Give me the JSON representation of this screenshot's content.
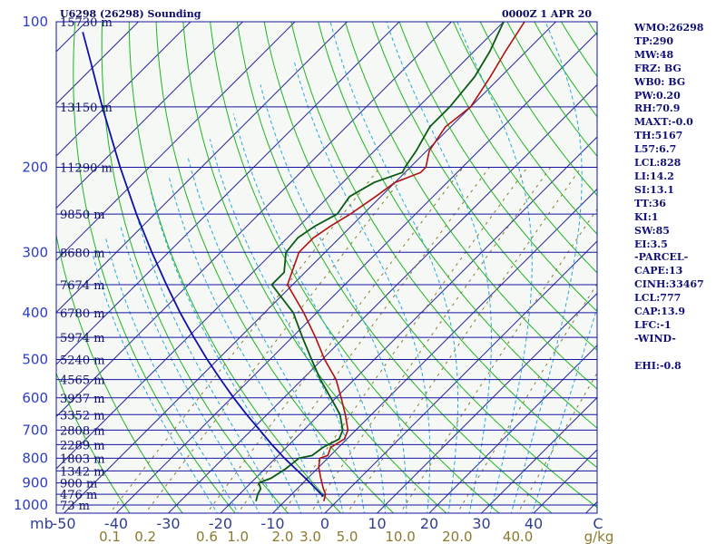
{
  "header": {
    "station": "U6298 (26298) Sounding",
    "valid_time": "0000Z  1 APR 20"
  },
  "side_panel": [
    "WMO:26298",
    "TP:290",
    "MW:48",
    "FRZ: BG",
    "WB0: BG",
    "PW:0.20",
    "RH:70.9",
    "MAXT:-0.0",
    "TH:5167",
    "L57:6.7",
    "LCL:828",
    "LI:14.2",
    "SI:13.1",
    "TT:36",
    "KI:1",
    "SW:85",
    "EI:3.5",
    "-PARCEL-",
    "CAPE:13",
    "CINH:33467",
    "LCL:777",
    "CAP:13.9",
    "LFC:-1",
    "-WIND-",
    "",
    "EHI:-0.8"
  ],
  "colors": {
    "background": "#f6f8f6",
    "isobar": "#1414a0",
    "isotherm": "#2a2aa0",
    "dry_adiabat": "#1fb41f",
    "moist_adiabat": "#28a8d8",
    "mixing_ratio": "#8a7a2e",
    "temperature": "#b01010",
    "dewpoint": "#0a5a14",
    "parcel": "#1010a8"
  },
  "chart_data": {
    "type": "skew-t",
    "title": "U6298 (26298) Sounding  0000Z  1 APR 20",
    "xlabel": "C",
    "x_units_label": "g/kg",
    "pressure_axis_label": "mb",
    "pressure_ticks": [
      "100",
      "200",
      "300",
      "400",
      "500",
      "600",
      "700",
      "800",
      "900",
      "1000"
    ],
    "temperature_ticks": [
      "-50",
      "-40",
      "-30",
      "-20",
      "-10",
      "0",
      "10",
      "20",
      "30",
      "40"
    ],
    "mixing_ratio_ticks": [
      "0.1",
      "0.2",
      "0.6",
      "1.0",
      "2.0",
      "3.0",
      "5.0",
      "10.0",
      "20.0",
      "40.0"
    ],
    "height_labels": [
      {
        "p": 100,
        "label": "15730 m"
      },
      {
        "p": 150,
        "label": "13150 m"
      },
      {
        "p": 200,
        "label": "11290 m"
      },
      {
        "p": 250,
        "label": "9850 m"
      },
      {
        "p": 300,
        "label": "8680 m"
      },
      {
        "p": 350,
        "label": "7674 m"
      },
      {
        "p": 400,
        "label": "6780 m"
      },
      {
        "p": 450,
        "label": "5974 m"
      },
      {
        "p": 500,
        "label": "5240 m"
      },
      {
        "p": 550,
        "label": "4565 m"
      },
      {
        "p": 600,
        "label": "3937 m"
      },
      {
        "p": 650,
        "label": "3352 m"
      },
      {
        "p": 700,
        "label": "2808 m"
      },
      {
        "p": 750,
        "label": "2289 m"
      },
      {
        "p": 800,
        "label": "1803 m"
      },
      {
        "p": 850,
        "label": "1342 m"
      },
      {
        "p": 900,
        "label": "900 m"
      },
      {
        "p": 950,
        "label": "476 m"
      },
      {
        "p": 1000,
        "label": "73 m"
      }
    ],
    "series": [
      {
        "points": [
          [
            982,
            -2.5
          ],
          [
            950,
            -3.5
          ],
          [
            925,
            -5.0
          ],
          [
            880,
            -7.5
          ],
          [
            835,
            -10.0
          ],
          [
            800,
            -11.5
          ],
          [
            790,
            -10.5
          ],
          [
            760,
            -11.5
          ],
          [
            730,
            -10.5
          ],
          [
            700,
            -11.5
          ],
          [
            650,
            -15.0
          ],
          [
            600,
            -19.0
          ],
          [
            550,
            -23.5
          ],
          [
            500,
            -29.5
          ],
          [
            450,
            -35.5
          ],
          [
            400,
            -42.5
          ],
          [
            350,
            -51.0
          ],
          [
            300,
            -55.0
          ],
          [
            280,
            -55.0
          ],
          [
            265,
            -54.0
          ],
          [
            250,
            -52.5
          ],
          [
            230,
            -51.0
          ],
          [
            215,
            -50.0
          ],
          [
            205,
            -47.0
          ],
          [
            200,
            -47.0
          ],
          [
            185,
            -49.5
          ],
          [
            165,
            -51.0
          ],
          [
            150,
            -50.0
          ],
          [
            130,
            -52.0
          ],
          [
            115,
            -54.0
          ],
          [
            100,
            -56.0
          ]
        ]
      },
      {
        "points": [
          [
            982,
            -15.5
          ],
          [
            950,
            -16.5
          ],
          [
            925,
            -17.0
          ],
          [
            900,
            -18.5
          ],
          [
            880,
            -17.0
          ],
          [
            840,
            -16.0
          ],
          [
            800,
            -15.5
          ],
          [
            790,
            -13.5
          ],
          [
            760,
            -13.0
          ],
          [
            730,
            -11.5
          ],
          [
            700,
            -12.5
          ],
          [
            650,
            -16.0
          ],
          [
            600,
            -21.0
          ],
          [
            550,
            -26.5
          ],
          [
            500,
            -32.0
          ],
          [
            450,
            -38.0
          ],
          [
            400,
            -44.5
          ],
          [
            350,
            -54.0
          ],
          [
            330,
            -54.0
          ],
          [
            300,
            -57.5
          ],
          [
            280,
            -58.0
          ],
          [
            265,
            -57.0
          ],
          [
            250,
            -55.0
          ],
          [
            230,
            -56.0
          ],
          [
            215,
            -54.0
          ],
          [
            205,
            -50.5
          ],
          [
            200,
            -51.0
          ],
          [
            185,
            -52.0
          ],
          [
            165,
            -54.0
          ],
          [
            150,
            -54.0
          ],
          [
            130,
            -55.0
          ],
          [
            115,
            -57.0
          ],
          [
            100,
            -60.0
          ]
        ]
      },
      {
        "points": [
          [
            960,
            -3.5
          ],
          [
            900,
            -8.6
          ],
          [
            850,
            -13.3
          ],
          [
            800,
            -18.3
          ],
          [
            750,
            -23.3
          ],
          [
            700,
            -28.4
          ],
          [
            650,
            -33.9
          ],
          [
            600,
            -39.6
          ],
          [
            550,
            -45.6
          ],
          [
            500,
            -52.0
          ],
          [
            450,
            -58.8
          ],
          [
            400,
            -66.2
          ],
          [
            350,
            -74.2
          ],
          [
            300,
            -83.2
          ],
          [
            250,
            -93.5
          ],
          [
            200,
            -105.6
          ],
          [
            150,
            -120.6
          ],
          [
            120,
            -131.9
          ],
          [
            105,
            -138.7
          ]
        ]
      }
    ]
  }
}
